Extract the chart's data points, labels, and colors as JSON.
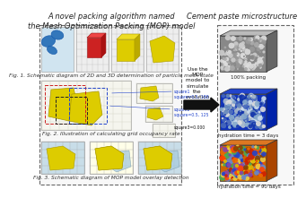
{
  "title_left": "A novel packing algorithm named\nthe Mesh Optimization Packing (MOP) model",
  "title_right": "Cement paste microstructure",
  "arrow_text": "Use the\nMOP\nmodel to\nsimulate\nthe\nevolution",
  "fig1_caption": "Fig. 1. Schematic diagram of 2D and 3D determination of particle mesh state",
  "fig2_caption": "Fig. 2. Illustration of calculating grid occupancy rate",
  "fig3_caption": "Fig. 3. Schematic diagram of MOP model overlay detection",
  "label_100pct": "100% packing",
  "label_3days": "hydration time = 3 days",
  "label_90days": "hydration time = 90 days",
  "bg_color": "#ffffff",
  "title_fontsize": 6.0,
  "caption_fontsize": 4.2
}
